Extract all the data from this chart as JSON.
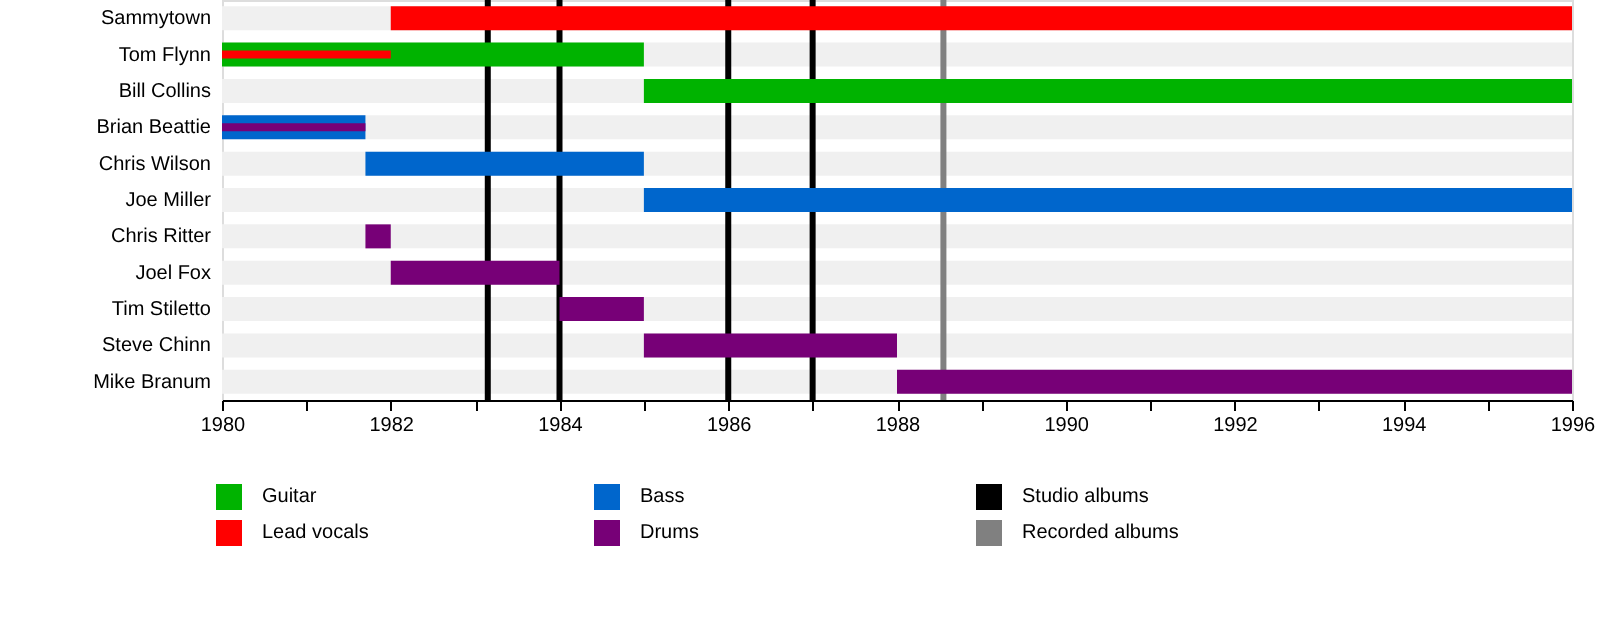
{
  "chart_data": {
    "type": "bar",
    "orientation": "horizontal",
    "legend": "bottom",
    "grid": false,
    "categories": [
      "Sammytown",
      "Tom Flynn",
      "Bill Collins",
      "Brian Beattie",
      "Chris Wilson",
      "Joe Miller",
      "Chris Ritter",
      "Joel Fox",
      "Tim Stiletto",
      "Steve Chinn",
      "Mike Branum"
    ],
    "series": [
      {
        "name": "Guitar",
        "color": "#00b300",
        "base": [
          null,
          1980,
          1985,
          null,
          null,
          null,
          null,
          null,
          null,
          null,
          null
        ],
        "values": [
          null,
          5,
          11,
          null,
          null,
          null,
          null,
          null,
          null,
          null,
          null
        ]
      },
      {
        "name": "Lead vocals",
        "color": "#ff0000",
        "base": [
          1982,
          1980,
          null,
          null,
          null,
          null,
          null,
          null,
          null,
          null,
          null
        ],
        "values": [
          14,
          2,
          null,
          null,
          null,
          null,
          null,
          null,
          null,
          null,
          null
        ]
      },
      {
        "name": "Bass",
        "color": "#0066cc",
        "base": [
          null,
          null,
          null,
          1980,
          1981.7,
          1985,
          null,
          null,
          null,
          null,
          null
        ],
        "values": [
          null,
          null,
          null,
          1.7,
          3.3,
          11,
          null,
          null,
          null,
          null,
          null
        ]
      },
      {
        "name": "Drums",
        "color": "#770077",
        "base": [
          null,
          null,
          null,
          1980,
          null,
          null,
          1981.7,
          1982,
          1984,
          1985,
          1988
        ],
        "values": [
          null,
          null,
          null,
          1.7,
          null,
          null,
          0.3,
          2,
          1,
          3,
          8
        ]
      }
    ],
    "xlim": [
      1980,
      1996
    ],
    "xticks": [
      1980,
      {
        "value": 1981,
        "label": null
      },
      1982,
      {
        "value": 1983,
        "label": null
      },
      1984,
      {
        "value": 1985,
        "label": null
      },
      1986,
      {
        "value": 1987,
        "label": null
      },
      1988,
      {
        "value": 1989,
        "label": null
      },
      1990,
      {
        "value": 1991,
        "label": null
      },
      1992,
      {
        "value": 1993,
        "label": null
      },
      1994,
      {
        "value": 1995,
        "label": null
      },
      1996
    ],
    "ref_lines": [
      {
        "axis": "x",
        "value": 1983.15,
        "label": "Studio albums",
        "color": "#000000"
      },
      {
        "axis": "x",
        "value": 1984,
        "color": "#000000"
      },
      {
        "axis": "x",
        "value": 1986,
        "color": "#000000"
      },
      {
        "axis": "x",
        "value": 1987,
        "color": "#000000"
      },
      {
        "axis": "x",
        "value": 1988.55,
        "label": "Recorded albums",
        "color": "#808080"
      }
    ]
  }
}
